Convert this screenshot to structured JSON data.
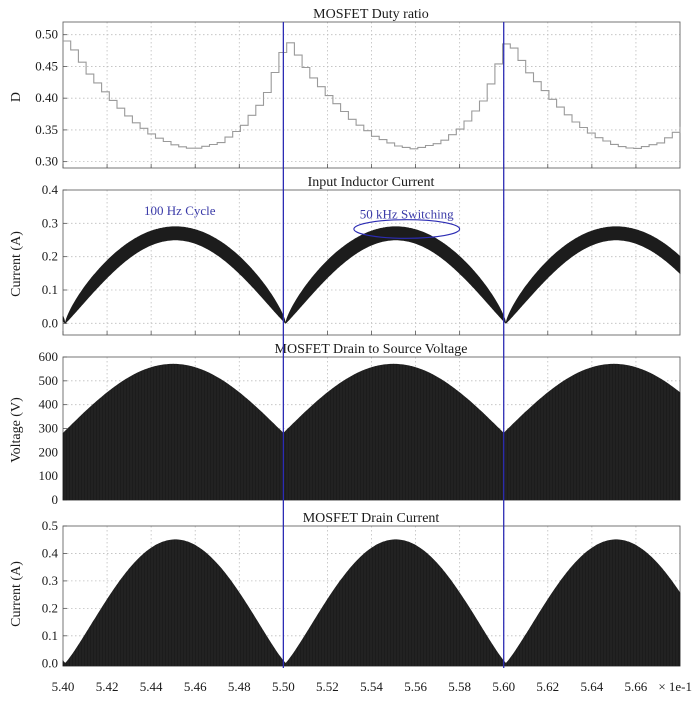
{
  "x_multiplier": "× 1e-1",
  "colors": {
    "trace": "#1c1c1c",
    "duty_trace": "#9a9a9a",
    "marker": "#2c2cb4",
    "annotation": "#3a3aa8",
    "grid": "#bdbdbd"
  },
  "chart_data": [
    {
      "type": "line",
      "title": "MOSFET Duty ratio",
      "xlabel": "",
      "ylabel": "D",
      "xlim": [
        5.4,
        5.68
      ],
      "ylim": [
        0.29,
        0.52
      ],
      "x_ticks": [
        5.4,
        5.42,
        5.44,
        5.46,
        5.48,
        5.5,
        5.52,
        5.54,
        5.56,
        5.58,
        5.6,
        5.62,
        5.64,
        5.66
      ],
      "x_tick_labels": [
        "5.40",
        "5.42",
        "5.44",
        "5.46",
        "5.48",
        "5.50",
        "5.52",
        "5.54",
        "5.56",
        "5.58",
        "5.60",
        "5.62",
        "5.64",
        "5.66"
      ],
      "y_ticks": [
        0.3,
        0.35,
        0.4,
        0.45,
        0.5
      ],
      "y_tick_labels": [
        "0.30",
        "0.35",
        "0.40",
        "0.45",
        "0.50"
      ],
      "grid": true,
      "series": [
        {
          "style": "staircase",
          "period": 0.1,
          "cycle_start": 5.401,
          "min_x": 5.458,
          "min_value": 0.32,
          "max_value": 0.49,
          "x": [
            5.401,
            5.41,
            5.42,
            5.43,
            5.44,
            5.45,
            5.458,
            5.47,
            5.48,
            5.49,
            5.5
          ],
          "values": [
            0.49,
            0.44,
            0.4,
            0.365,
            0.34,
            0.325,
            0.32,
            0.33,
            0.355,
            0.4,
            0.49
          ]
        }
      ]
    },
    {
      "type": "area",
      "title": "Input Inductor Current",
      "xlabel": "",
      "ylabel": "Current (A)",
      "xlim": [
        5.4,
        5.68
      ],
      "ylim": [
        -0.035,
        0.4
      ],
      "y_ticks": [
        0.0,
        0.1,
        0.2,
        0.3,
        0.4
      ],
      "y_tick_labels": [
        "0.0",
        "0.1",
        "0.2",
        "0.3",
        "0.4"
      ],
      "grid": true,
      "series": [
        {
          "style": "ripple-band",
          "period": 0.1,
          "zero_at": 5.401,
          "peak_x": 5.4555,
          "upper_peak": 0.29,
          "lower_peak": 0.25
        }
      ],
      "annotations": [
        {
          "text": "100 Hz Cycle",
          "x": 5.453,
          "y": 0.325
        },
        {
          "text": "50 kHz Switching",
          "x": 5.556,
          "y": 0.315
        }
      ],
      "highlight_ellipse": {
        "cx": 5.556,
        "cy": 0.283,
        "rx": 0.024,
        "ry": 0.028
      }
    },
    {
      "type": "area",
      "title": "MOSFET Drain to Source Voltage",
      "xlabel": "",
      "ylabel": "Voltage (V)",
      "xlim": [
        5.4,
        5.68
      ],
      "ylim": [
        0,
        600
      ],
      "y_ticks": [
        0,
        100,
        200,
        300,
        400,
        500,
        600
      ],
      "y_tick_labels": [
        "0",
        "100",
        "200",
        "300",
        "400",
        "500",
        "600"
      ],
      "grid": true,
      "series": [
        {
          "style": "switching-envelope",
          "period": 0.1,
          "peak_x": 5.45,
          "peak_value": 570,
          "edge_value": 280
        }
      ]
    },
    {
      "type": "area",
      "title": "MOSFET Drain Current",
      "xlabel": "",
      "ylabel": "Current (A)",
      "xlim": [
        5.4,
        5.68
      ],
      "ylim": [
        -0.01,
        0.5
      ],
      "y_ticks": [
        0.0,
        0.1,
        0.2,
        0.3,
        0.4,
        0.5
      ],
      "y_tick_labels": [
        "0.0",
        "0.1",
        "0.2",
        "0.3",
        "0.4",
        "0.5"
      ],
      "grid": true,
      "series": [
        {
          "style": "switching-envelope",
          "period": 0.1,
          "zero_at": 5.401,
          "peak_x": 5.4555,
          "peak_value": 0.45
        }
      ]
    }
  ],
  "markers": [
    5.5,
    5.6
  ]
}
